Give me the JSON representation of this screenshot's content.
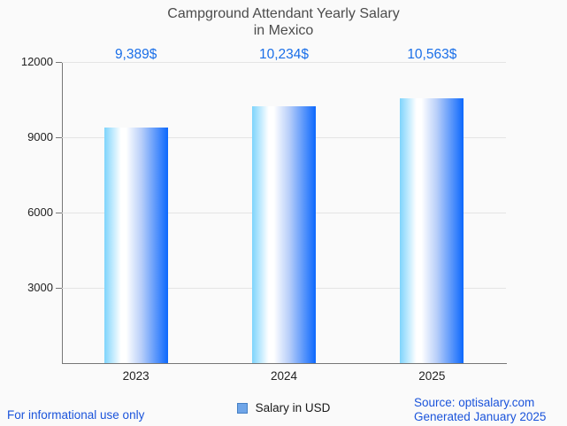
{
  "chart_data": {
    "type": "bar",
    "title": "Campground Attendant Yearly Salary in Mexico",
    "title_lines": [
      "Campground Attendant Yearly Salary",
      "in Mexico"
    ],
    "categories": [
      "2023",
      "2024",
      "2025"
    ],
    "values": [
      9389,
      10234,
      10563
    ],
    "value_labels": [
      "9,389$",
      "10,234$",
      "10,563$"
    ],
    "series": [
      {
        "name": "Salary in USD",
        "values": [
          9389,
          10234,
          10563
        ]
      }
    ],
    "xlabel": "",
    "ylabel": "",
    "ylim": [
      0,
      12000
    ],
    "yticks": [
      12000,
      9000,
      6000,
      3000
    ],
    "ytick_labels": [
      "12000",
      "9000",
      "6000",
      "3000"
    ],
    "grid": true,
    "legend_position": "bottom"
  },
  "legend": {
    "label": "Salary in USD"
  },
  "footer": {
    "disclaimer": "For informational use only",
    "source": "Source: optisalary.com",
    "generated": "Generated January 2025"
  },
  "colors": {
    "bg": "#fafafa",
    "title_text": "#4c4c4c",
    "tick_text": "#222222",
    "grid": "#e4e4e4",
    "axis": "#777777",
    "value_label": "#1a6fe8",
    "footer_text": "#1b54db",
    "bar_left": "#7ed4fc",
    "bar_white": "#ffffff",
    "bar_mid": "#b9cff9",
    "bar_right": "#0c68fd",
    "legend_fill": "#6fa5e8",
    "legend_border": "#4680c4"
  }
}
